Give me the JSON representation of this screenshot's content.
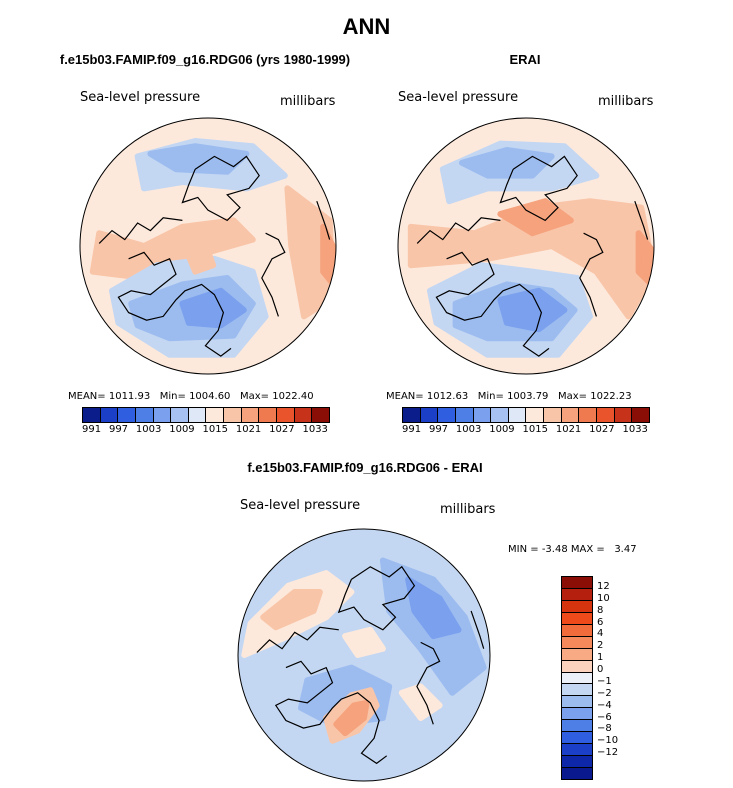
{
  "figure": {
    "title": "ANN"
  },
  "panels": [
    {
      "title": "f.e15b03.FAMIP.f09_g16.RDG06 (yrs 1980-1999)",
      "variable": "Sea-level pressure",
      "units": "millibars",
      "mean_label": "MEAN=",
      "mean": "1011.93",
      "min_label": "Min=",
      "min": "1004.60",
      "max_label": "Max=",
      "max": "1022.40"
    },
    {
      "title": "ERAI",
      "variable": "Sea-level pressure",
      "units": "millibars",
      "mean_label": "MEAN=",
      "mean": "1012.63",
      "min_label": "Min=",
      "min": "1003.79",
      "max_label": "Max=",
      "max": "1022.23"
    },
    {
      "title": "f.e15b03.FAMIP.f09_g16.RDG06 - ERAI",
      "variable": "Sea-level pressure",
      "units": "millibars",
      "min_label": "MIN =",
      "min": "-3.48",
      "max_label": "MAX =",
      "max": "3.47"
    }
  ],
  "abs_colorbar": {
    "colors": [
      "#0b1d8a",
      "#1b3fc6",
      "#2f5fe0",
      "#4d7fe6",
      "#7aa0ee",
      "#a7c2f2",
      "#dfe8f6",
      "#fde9dc",
      "#f9c5a8",
      "#f5a27d",
      "#f07a4f",
      "#e9542c",
      "#c6321a",
      "#8b0e06"
    ],
    "tick_labels": [
      "991",
      "997",
      "1003",
      "1009",
      "1015",
      "1021",
      "1027",
      "1033"
    ]
  },
  "diff_colorbar": {
    "colors": [
      "#8b0e06",
      "#b51f0e",
      "#d6330f",
      "#ef4b1a",
      "#f26b3a",
      "#f5895c",
      "#f7aa84",
      "#fad2bd",
      "#eaeff8",
      "#c4d7f2",
      "#9cbcf0",
      "#7aa0ee",
      "#4d7fe6",
      "#2f5fe0",
      "#1b3fc6",
      "#0d27a8",
      "#0a1a8e"
    ],
    "tick_labels": [
      "12",
      "10",
      "8",
      "6",
      "4",
      "2",
      "1",
      "0",
      "−1",
      "−2",
      "−4",
      "−6",
      "−8",
      "−10",
      "−12"
    ]
  },
  "maps": [
    {
      "base_color": "#fde9dc",
      "blobs": [
        {
          "c": "#c4d7f2",
          "pts": [
            [
              -0.55,
              -0.7
            ],
            [
              -0.1,
              -0.82
            ],
            [
              0.35,
              -0.78
            ],
            [
              0.6,
              -0.55
            ],
            [
              0.3,
              -0.45
            ],
            [
              -0.2,
              -0.5
            ],
            [
              -0.5,
              -0.45
            ]
          ]
        },
        {
          "c": "#9cbcf0",
          "pts": [
            [
              -0.45,
              -0.72
            ],
            [
              -0.1,
              -0.78
            ],
            [
              0.3,
              -0.72
            ],
            [
              0.15,
              -0.58
            ],
            [
              -0.25,
              -0.6
            ]
          ]
        },
        {
          "c": "#f9c5a8",
          "pts": [
            [
              -0.85,
              -0.1
            ],
            [
              -0.5,
              0.0
            ],
            [
              -0.2,
              -0.15
            ],
            [
              0.2,
              -0.2
            ],
            [
              0.35,
              -0.05
            ],
            [
              0.0,
              0.05
            ],
            [
              -0.5,
              0.25
            ],
            [
              -0.9,
              0.2
            ]
          ]
        },
        {
          "c": "#f9c5a8",
          "pts": [
            [
              0.62,
              -0.45
            ],
            [
              0.95,
              -0.2
            ],
            [
              0.98,
              0.4
            ],
            [
              0.75,
              0.55
            ],
            [
              0.65,
              0.0
            ]
          ]
        },
        {
          "c": "#f5a27d",
          "pts": [
            [
              0.9,
              -0.15
            ],
            [
              1.0,
              0.05
            ],
            [
              0.98,
              0.3
            ],
            [
              0.9,
              0.2
            ]
          ]
        },
        {
          "c": "#c4d7f2",
          "pts": [
            [
              -0.75,
              0.35
            ],
            [
              -0.4,
              0.15
            ],
            [
              0.05,
              0.1
            ],
            [
              0.35,
              0.2
            ],
            [
              0.45,
              0.55
            ],
            [
              0.2,
              0.85
            ],
            [
              -0.3,
              0.85
            ],
            [
              -0.7,
              0.6
            ]
          ]
        },
        {
          "c": "#9cbcf0",
          "pts": [
            [
              -0.6,
              0.45
            ],
            [
              -0.2,
              0.3
            ],
            [
              0.15,
              0.25
            ],
            [
              0.35,
              0.45
            ],
            [
              0.2,
              0.7
            ],
            [
              -0.3,
              0.72
            ],
            [
              -0.55,
              0.62
            ]
          ]
        },
        {
          "c": "#7aa0ee",
          "pts": [
            [
              -0.2,
              0.45
            ],
            [
              0.1,
              0.35
            ],
            [
              0.28,
              0.5
            ],
            [
              0.1,
              0.62
            ],
            [
              -0.15,
              0.6
            ]
          ]
        },
        {
          "c": "#f9c5a8",
          "pts": [
            [
              -0.15,
              0.08
            ],
            [
              0.0,
              0.04
            ],
            [
              0.04,
              0.15
            ],
            [
              -0.1,
              0.2
            ]
          ]
        }
      ]
    },
    {
      "base_color": "#fde9dc",
      "blobs": [
        {
          "c": "#c4d7f2",
          "pts": [
            [
              -0.65,
              -0.6
            ],
            [
              -0.2,
              -0.8
            ],
            [
              0.3,
              -0.78
            ],
            [
              0.55,
              -0.55
            ],
            [
              0.2,
              -0.45
            ],
            [
              -0.3,
              -0.45
            ],
            [
              -0.6,
              -0.35
            ]
          ]
        },
        {
          "c": "#9cbcf0",
          "pts": [
            [
              -0.5,
              -0.65
            ],
            [
              -0.15,
              -0.75
            ],
            [
              0.2,
              -0.7
            ],
            [
              0.05,
              -0.55
            ],
            [
              -0.3,
              -0.55
            ]
          ]
        },
        {
          "c": "#f9c5a8",
          "pts": [
            [
              -0.9,
              -0.15
            ],
            [
              -0.4,
              -0.1
            ],
            [
              0.1,
              -0.3
            ],
            [
              0.5,
              -0.35
            ],
            [
              0.9,
              -0.3
            ],
            [
              1.0,
              0.2
            ],
            [
              0.8,
              0.55
            ],
            [
              0.55,
              0.2
            ],
            [
              0.2,
              0.0
            ],
            [
              -0.3,
              0.1
            ],
            [
              -0.9,
              0.15
            ]
          ]
        },
        {
          "c": "#f5a27d",
          "pts": [
            [
              -0.2,
              -0.25
            ],
            [
              0.15,
              -0.35
            ],
            [
              0.35,
              -0.2
            ],
            [
              0.05,
              -0.1
            ]
          ]
        },
        {
          "c": "#f5a27d",
          "pts": [
            [
              0.88,
              -0.1
            ],
            [
              1.0,
              0.05
            ],
            [
              0.98,
              0.3
            ],
            [
              0.88,
              0.2
            ]
          ]
        },
        {
          "c": "#c4d7f2",
          "pts": [
            [
              -0.75,
              0.35
            ],
            [
              -0.35,
              0.15
            ],
            [
              0.05,
              0.2
            ],
            [
              0.4,
              0.25
            ],
            [
              0.5,
              0.55
            ],
            [
              0.25,
              0.85
            ],
            [
              -0.3,
              0.85
            ],
            [
              -0.7,
              0.6
            ]
          ]
        },
        {
          "c": "#9cbcf0",
          "pts": [
            [
              -0.55,
              0.45
            ],
            [
              -0.15,
              0.3
            ],
            [
              0.2,
              0.35
            ],
            [
              0.38,
              0.5
            ],
            [
              0.2,
              0.72
            ],
            [
              -0.3,
              0.72
            ],
            [
              -0.55,
              0.62
            ]
          ]
        },
        {
          "c": "#7aa0ee",
          "pts": [
            [
              -0.2,
              0.42
            ],
            [
              0.1,
              0.35
            ],
            [
              0.3,
              0.5
            ],
            [
              0.1,
              0.65
            ],
            [
              -0.15,
              0.6
            ]
          ]
        }
      ]
    },
    {
      "base_color": "#c4d7f2",
      "blobs": [
        {
          "c": "#fde9dc",
          "pts": [
            [
              -0.9,
              -0.25
            ],
            [
              -0.6,
              -0.55
            ],
            [
              -0.3,
              -0.65
            ],
            [
              -0.1,
              -0.5
            ],
            [
              -0.3,
              -0.3
            ],
            [
              -0.6,
              -0.15
            ],
            [
              -0.95,
              0.0
            ]
          ]
        },
        {
          "c": "#f9c5a8",
          "pts": [
            [
              -0.8,
              -0.3
            ],
            [
              -0.55,
              -0.5
            ],
            [
              -0.35,
              -0.5
            ],
            [
              -0.4,
              -0.35
            ],
            [
              -0.7,
              -0.22
            ]
          ]
        },
        {
          "c": "#9cbcf0",
          "pts": [
            [
              0.15,
              -0.75
            ],
            [
              0.55,
              -0.6
            ],
            [
              0.8,
              -0.3
            ],
            [
              0.95,
              0.1
            ],
            [
              0.7,
              0.3
            ],
            [
              0.45,
              -0.05
            ],
            [
              0.2,
              -0.35
            ]
          ]
        },
        {
          "c": "#7aa0ee",
          "pts": [
            [
              0.35,
              -0.6
            ],
            [
              0.6,
              -0.45
            ],
            [
              0.75,
              -0.2
            ],
            [
              0.55,
              -0.15
            ],
            [
              0.4,
              -0.35
            ]
          ]
        },
        {
          "c": "#9cbcf0",
          "pts": [
            [
              -0.45,
              0.2
            ],
            [
              -0.1,
              0.1
            ],
            [
              0.2,
              0.25
            ],
            [
              0.15,
              0.5
            ],
            [
              -0.25,
              0.55
            ],
            [
              -0.5,
              0.42
            ]
          ]
        },
        {
          "c": "#f9c5a8",
          "pts": [
            [
              -0.3,
              0.5
            ],
            [
              -0.1,
              0.32
            ],
            [
              0.05,
              0.28
            ],
            [
              0.1,
              0.4
            ],
            [
              -0.05,
              0.6
            ],
            [
              -0.25,
              0.68
            ]
          ]
        },
        {
          "c": "#f5a27d",
          "pts": [
            [
              -0.22,
              0.55
            ],
            [
              -0.08,
              0.4
            ],
            [
              0.02,
              0.38
            ],
            [
              0.0,
              0.5
            ],
            [
              -0.15,
              0.62
            ]
          ]
        },
        {
          "c": "#fde9dc",
          "pts": [
            [
              0.3,
              0.3
            ],
            [
              0.45,
              0.25
            ],
            [
              0.6,
              0.4
            ],
            [
              0.45,
              0.5
            ]
          ]
        },
        {
          "c": "#fde9dc",
          "pts": [
            [
              -0.15,
              -0.15
            ],
            [
              0.05,
              -0.2
            ],
            [
              0.15,
              -0.05
            ],
            [
              -0.05,
              0.0
            ]
          ]
        }
      ]
    }
  ],
  "coast": [
    [
      [
        -0.62,
        0.1
      ],
      [
        -0.5,
        0.05
      ],
      [
        -0.42,
        0.15
      ],
      [
        -0.3,
        0.1
      ],
      [
        -0.25,
        0.22
      ],
      [
        -0.35,
        0.3
      ],
      [
        -0.45,
        0.38
      ],
      [
        -0.6,
        0.35
      ],
      [
        -0.7,
        0.4
      ],
      [
        -0.62,
        0.52
      ],
      [
        -0.48,
        0.58
      ],
      [
        -0.35,
        0.55
      ],
      [
        -0.25,
        0.42
      ],
      [
        -0.18,
        0.35
      ],
      [
        -0.05,
        0.3
      ],
      [
        0.05,
        0.38
      ],
      [
        0.12,
        0.52
      ],
      [
        0.08,
        0.66
      ],
      [
        -0.02,
        0.78
      ],
      [
        0.1,
        0.86
      ],
      [
        0.18,
        0.8
      ]
    ],
    [
      [
        0.55,
        0.55
      ],
      [
        0.5,
        0.4
      ],
      [
        0.42,
        0.25
      ],
      [
        0.5,
        0.1
      ],
      [
        0.6,
        0.05
      ],
      [
        0.55,
        -0.05
      ],
      [
        0.45,
        -0.1
      ]
    ],
    [
      [
        -0.1,
        -0.6
      ],
      [
        0.05,
        -0.7
      ],
      [
        0.2,
        -0.62
      ],
      [
        0.3,
        -0.7
      ],
      [
        0.4,
        -0.55
      ],
      [
        0.32,
        -0.45
      ],
      [
        0.15,
        -0.4
      ],
      [
        0.25,
        -0.3
      ],
      [
        0.15,
        -0.2
      ],
      [
        0.0,
        -0.28
      ],
      [
        -0.08,
        -0.38
      ],
      [
        -0.2,
        -0.34
      ],
      [
        -0.15,
        -0.48
      ],
      [
        -0.1,
        -0.6
      ]
    ],
    [
      [
        -0.2,
        -0.2
      ],
      [
        -0.35,
        -0.22
      ],
      [
        -0.45,
        -0.12
      ],
      [
        -0.55,
        -0.18
      ],
      [
        -0.65,
        -0.05
      ],
      [
        -0.75,
        -0.12
      ],
      [
        -0.85,
        -0.02
      ]
    ],
    [
      [
        0.85,
        -0.35
      ],
      [
        0.92,
        -0.15
      ],
      [
        0.95,
        -0.05
      ]
    ]
  ]
}
